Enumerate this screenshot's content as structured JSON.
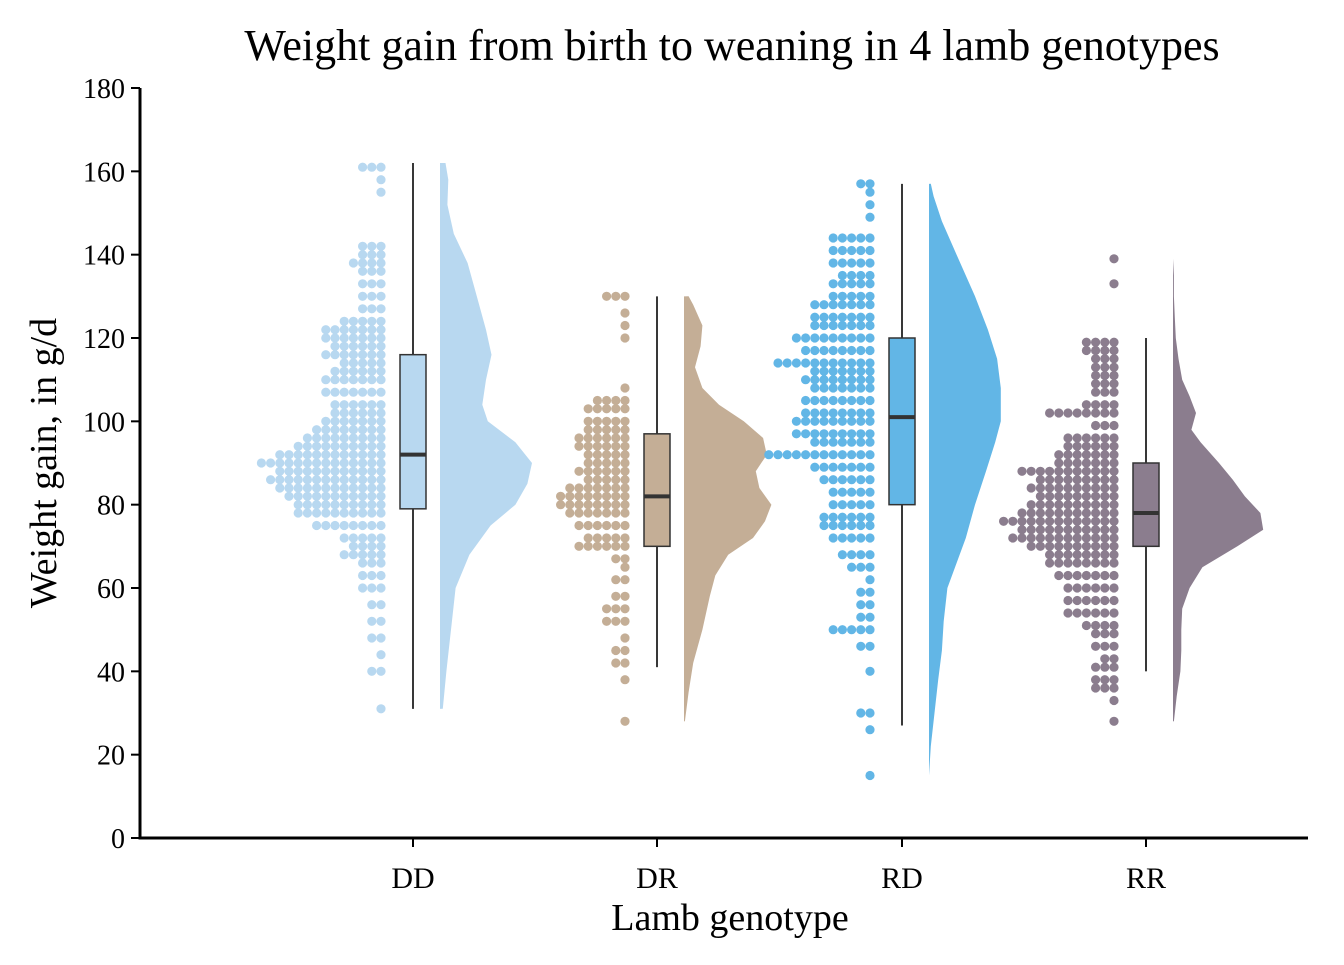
{
  "chart_data": {
    "type": "raincloud",
    "title": "Weight gain from birth to weaning in 4 lamb genotypes",
    "xlabel": "Lamb genotype",
    "ylabel": "Weight gain, in g/d",
    "ylim": [
      0,
      180
    ],
    "yticks": [
      0,
      20,
      40,
      60,
      80,
      100,
      120,
      140,
      160,
      180
    ],
    "grid": false,
    "legend": "none",
    "categories": [
      "DD",
      "DR",
      "RD",
      "RR"
    ],
    "series": [
      {
        "category": "DD",
        "color": "#b8d8f0",
        "box": {
          "min": 31,
          "q1": 79,
          "median": 92,
          "q3": 116,
          "max": 162
        },
        "density": [
          [
            31,
            0.03
          ],
          [
            40,
            0.07
          ],
          [
            50,
            0.12
          ],
          [
            60,
            0.17
          ],
          [
            68,
            0.32
          ],
          [
            75,
            0.55
          ],
          [
            80,
            0.82
          ],
          [
            85,
            0.95
          ],
          [
            90,
            1.0
          ],
          [
            95,
            0.82
          ],
          [
            100,
            0.52
          ],
          [
            104,
            0.46
          ],
          [
            110,
            0.5
          ],
          [
            116,
            0.56
          ],
          [
            122,
            0.5
          ],
          [
            130,
            0.4
          ],
          [
            138,
            0.3
          ],
          [
            145,
            0.15
          ],
          [
            152,
            0.08
          ],
          [
            158,
            0.09
          ],
          [
            162,
            0.06
          ]
        ],
        "dot_counts": [
          [
            31,
            1
          ],
          [
            40,
            2
          ],
          [
            44,
            1
          ],
          [
            48,
            2
          ],
          [
            52,
            2
          ],
          [
            56,
            2
          ],
          [
            60,
            3
          ],
          [
            63,
            3
          ],
          [
            66,
            3
          ],
          [
            68,
            5
          ],
          [
            70,
            4
          ],
          [
            72,
            5
          ],
          [
            75,
            8
          ],
          [
            78,
            10
          ],
          [
            80,
            10
          ],
          [
            82,
            11
          ],
          [
            84,
            12
          ],
          [
            86,
            13
          ],
          [
            88,
            12
          ],
          [
            90,
            14
          ],
          [
            92,
            12
          ],
          [
            94,
            10
          ],
          [
            96,
            9
          ],
          [
            98,
            8
          ],
          [
            100,
            7
          ],
          [
            102,
            6
          ],
          [
            104,
            6
          ],
          [
            107,
            7
          ],
          [
            110,
            7
          ],
          [
            112,
            6
          ],
          [
            114,
            5
          ],
          [
            116,
            7
          ],
          [
            118,
            6
          ],
          [
            120,
            7
          ],
          [
            122,
            7
          ],
          [
            124,
            5
          ],
          [
            127,
            3
          ],
          [
            130,
            3
          ],
          [
            133,
            3
          ],
          [
            136,
            3
          ],
          [
            138,
            4
          ],
          [
            140,
            3
          ],
          [
            142,
            3
          ],
          [
            155,
            1
          ],
          [
            158,
            1
          ],
          [
            161,
            3
          ]
        ]
      },
      {
        "category": "DR",
        "color": "#c4ae96",
        "box": {
          "min": 41,
          "q1": 70,
          "median": 82,
          "q3": 97,
          "max": 130
        },
        "density": [
          [
            28,
            0.01
          ],
          [
            35,
            0.05
          ],
          [
            42,
            0.1
          ],
          [
            50,
            0.2
          ],
          [
            58,
            0.28
          ],
          [
            63,
            0.34
          ],
          [
            68,
            0.48
          ],
          [
            72,
            0.75
          ],
          [
            76,
            0.88
          ],
          [
            80,
            0.95
          ],
          [
            84,
            0.82
          ],
          [
            88,
            0.78
          ],
          [
            92,
            0.9
          ],
          [
            96,
            0.86
          ],
          [
            100,
            0.65
          ],
          [
            104,
            0.38
          ],
          [
            108,
            0.2
          ],
          [
            113,
            0.12
          ],
          [
            118,
            0.18
          ],
          [
            123,
            0.2
          ],
          [
            128,
            0.1
          ],
          [
            130,
            0.05
          ]
        ],
        "dot_counts": [
          [
            28,
            1
          ],
          [
            38,
            1
          ],
          [
            42,
            2
          ],
          [
            45,
            2
          ],
          [
            48,
            1
          ],
          [
            52,
            3
          ],
          [
            55,
            3
          ],
          [
            58,
            2
          ],
          [
            62,
            2
          ],
          [
            65,
            1
          ],
          [
            67,
            2
          ],
          [
            70,
            6
          ],
          [
            72,
            5
          ],
          [
            75,
            6
          ],
          [
            78,
            7
          ],
          [
            80,
            8
          ],
          [
            82,
            8
          ],
          [
            84,
            7
          ],
          [
            86,
            5
          ],
          [
            88,
            6
          ],
          [
            90,
            5
          ],
          [
            92,
            5
          ],
          [
            94,
            6
          ],
          [
            96,
            6
          ],
          [
            98,
            5
          ],
          [
            100,
            5
          ],
          [
            103,
            5
          ],
          [
            105,
            4
          ],
          [
            108,
            1
          ],
          [
            120,
            1
          ],
          [
            123,
            1
          ],
          [
            126,
            1
          ],
          [
            130,
            3
          ]
        ]
      },
      {
        "category": "RD",
        "color": "#62b6e6",
        "box": {
          "min": 27,
          "q1": 80,
          "median": 101,
          "q3": 120,
          "max": 157
        },
        "density": [
          [
            15,
            0.0
          ],
          [
            22,
            0.02
          ],
          [
            30,
            0.06
          ],
          [
            38,
            0.1
          ],
          [
            45,
            0.14
          ],
          [
            52,
            0.16
          ],
          [
            60,
            0.2
          ],
          [
            66,
            0.3
          ],
          [
            72,
            0.4
          ],
          [
            80,
            0.5
          ],
          [
            88,
            0.62
          ],
          [
            95,
            0.72
          ],
          [
            100,
            0.78
          ],
          [
            108,
            0.78
          ],
          [
            115,
            0.74
          ],
          [
            122,
            0.64
          ],
          [
            130,
            0.5
          ],
          [
            140,
            0.3
          ],
          [
            148,
            0.14
          ],
          [
            154,
            0.05
          ],
          [
            157,
            0.02
          ]
        ],
        "dot_counts": [
          [
            15,
            1
          ],
          [
            26,
            1
          ],
          [
            30,
            2
          ],
          [
            40,
            1
          ],
          [
            46,
            2
          ],
          [
            50,
            5
          ],
          [
            53,
            2
          ],
          [
            56,
            2
          ],
          [
            59,
            2
          ],
          [
            62,
            1
          ],
          [
            65,
            3
          ],
          [
            68,
            4
          ],
          [
            72,
            5
          ],
          [
            75,
            6
          ],
          [
            77,
            6
          ],
          [
            80,
            5
          ],
          [
            83,
            5
          ],
          [
            86,
            6
          ],
          [
            89,
            7
          ],
          [
            92,
            12
          ],
          [
            95,
            7
          ],
          [
            97,
            9
          ],
          [
            100,
            9
          ],
          [
            102,
            8
          ],
          [
            105,
            8
          ],
          [
            108,
            7
          ],
          [
            110,
            8
          ],
          [
            112,
            7
          ],
          [
            114,
            11
          ],
          [
            117,
            8
          ],
          [
            120,
            9
          ],
          [
            123,
            7
          ],
          [
            125,
            7
          ],
          [
            128,
            7
          ],
          [
            130,
            5
          ],
          [
            133,
            5
          ],
          [
            135,
            4
          ],
          [
            138,
            5
          ],
          [
            141,
            5
          ],
          [
            144,
            5
          ],
          [
            149,
            1
          ],
          [
            152,
            1
          ],
          [
            155,
            1
          ],
          [
            157,
            2
          ]
        ]
      },
      {
        "category": "RR",
        "color": "#8b7d8e",
        "box": {
          "min": 40,
          "q1": 70,
          "median": 78,
          "q3": 90,
          "max": 120
        },
        "density": [
          [
            28,
            0.01
          ],
          [
            34,
            0.04
          ],
          [
            40,
            0.08
          ],
          [
            45,
            0.09
          ],
          [
            50,
            0.09
          ],
          [
            55,
            0.1
          ],
          [
            60,
            0.18
          ],
          [
            65,
            0.32
          ],
          [
            70,
            0.7
          ],
          [
            74,
            0.98
          ],
          [
            78,
            0.95
          ],
          [
            82,
            0.78
          ],
          [
            86,
            0.65
          ],
          [
            90,
            0.5
          ],
          [
            95,
            0.3
          ],
          [
            98,
            0.2
          ],
          [
            102,
            0.25
          ],
          [
            106,
            0.18
          ],
          [
            110,
            0.1
          ],
          [
            115,
            0.06
          ],
          [
            120,
            0.03
          ],
          [
            125,
            0.02
          ],
          [
            130,
            0.01
          ],
          [
            135,
            0.01
          ],
          [
            139,
            0.0
          ]
        ],
        "dot_counts": [
          [
            28,
            1
          ],
          [
            33,
            1
          ],
          [
            36,
            3
          ],
          [
            38,
            3
          ],
          [
            41,
            3
          ],
          [
            43,
            2
          ],
          [
            46,
            3
          ],
          [
            49,
            3
          ],
          [
            51,
            4
          ],
          [
            54,
            6
          ],
          [
            57,
            6
          ],
          [
            60,
            6
          ],
          [
            63,
            7
          ],
          [
            66,
            8
          ],
          [
            68,
            8
          ],
          [
            70,
            10
          ],
          [
            72,
            12
          ],
          [
            74,
            11
          ],
          [
            76,
            13
          ],
          [
            78,
            11
          ],
          [
            80,
            10
          ],
          [
            82,
            9
          ],
          [
            84,
            10
          ],
          [
            86,
            9
          ],
          [
            88,
            11
          ],
          [
            90,
            7
          ],
          [
            92,
            7
          ],
          [
            94,
            6
          ],
          [
            96,
            6
          ],
          [
            99,
            3
          ],
          [
            102,
            8
          ],
          [
            104,
            4
          ],
          [
            107,
            3
          ],
          [
            109,
            3
          ],
          [
            111,
            3
          ],
          [
            113,
            3
          ],
          [
            115,
            3
          ],
          [
            117,
            4
          ],
          [
            119,
            4
          ],
          [
            133,
            1
          ],
          [
            139,
            1
          ]
        ]
      }
    ]
  }
}
